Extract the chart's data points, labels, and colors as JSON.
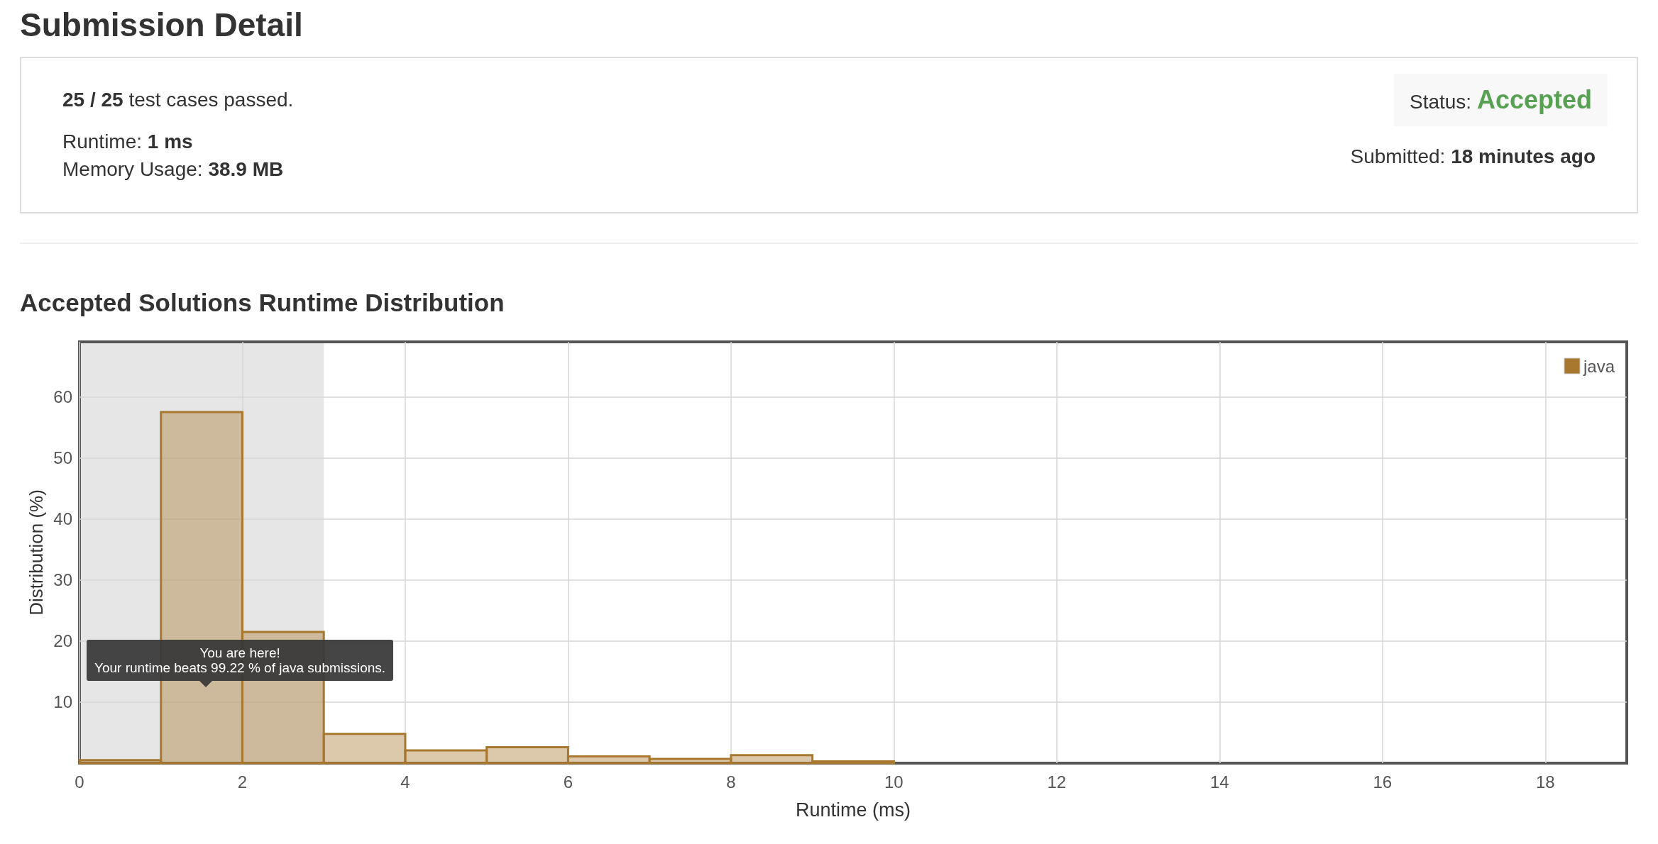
{
  "chart_data": {
    "type": "histogram",
    "title": "Accepted Solutions Runtime Distribution",
    "xlabel": "Runtime (ms)",
    "ylabel": "Distribution (%)",
    "bins": [
      0,
      1,
      2,
      3,
      4,
      5,
      6,
      7,
      8,
      9,
      10
    ],
    "series": [
      {
        "name": "java",
        "color": "#a8782f",
        "values": [
          0.5,
          57.5,
          21.5,
          4.8,
          2.1,
          2.6,
          1.1,
          0.7,
          1.3,
          0.3
        ]
      }
    ],
    "xlim": [
      0,
      19
    ],
    "xticks": [
      0,
      2,
      4,
      6,
      8,
      10,
      12,
      14,
      16,
      18
    ],
    "ylim": [
      0,
      69
    ],
    "yticks": [
      10,
      20,
      30,
      40,
      50,
      60
    ],
    "grid": true,
    "legend": "top right",
    "bands": [
      {
        "axis": "x",
        "from": 0,
        "to": 3,
        "color": "#e6e6e6"
      }
    ],
    "annotations": [
      "Submission Detail",
      "25 / 25 test cases passed.",
      "Runtime: 1 ms",
      "Memory Usage: 38.9 MB",
      "Status: Accepted",
      "Submitted: 18 minutes ago",
      "You are here!\nYour runtime beats 99.22 % of java submissions."
    ]
  }
}
